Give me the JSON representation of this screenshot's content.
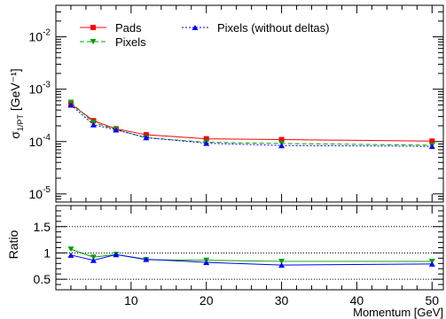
{
  "chart_data": [
    {
      "panel": "main",
      "type": "line",
      "ylabel_main": "σ",
      "ylabel_sub": "1/PT",
      "ylabel_unit": "[GeV⁻¹]",
      "y_scale": "log",
      "ylim": [
        7e-06,
        0.04
      ],
      "y_ticks": [
        {
          "value": 0.01,
          "base": "10",
          "exp": "-2"
        },
        {
          "value": 0.001,
          "base": "10",
          "exp": "-3"
        },
        {
          "value": 0.0001,
          "base": "10",
          "exp": "-4"
        },
        {
          "value": 1e-05,
          "base": "10",
          "exp": "-5"
        }
      ],
      "xlim": [
        0,
        51.5
      ],
      "legend_position": "top",
      "series": [
        {
          "name": "Pads",
          "color": "#ff0000",
          "marker": "square",
          "dash": "solid",
          "x": [
            2,
            5,
            8,
            12,
            20,
            30,
            50
          ],
          "y": [
            0.00052,
            0.00025,
            0.000175,
            0.000135,
            0.000113,
            0.000109,
            0.000102
          ]
        },
        {
          "name": "Pixels",
          "color": "#00a000",
          "marker": "triangle-down",
          "dash": "dashed",
          "x": [
            2,
            5,
            8,
            12,
            20,
            30,
            50
          ],
          "y": [
            0.00056,
            0.00023,
            0.00017,
            0.000118,
            9.7e-05,
            9.2e-05,
            8.5e-05
          ]
        },
        {
          "name": "Pixels (without deltas)",
          "color": "#0000ff",
          "marker": "triangle-up",
          "dash": "dotted",
          "x": [
            2,
            5,
            8,
            12,
            20,
            30,
            50
          ],
          "y": [
            0.0005,
            0.00021,
            0.000168,
            0.000119,
            9.3e-05,
            8.4e-05,
            8.1e-05
          ]
        }
      ]
    },
    {
      "panel": "ratio",
      "type": "line",
      "ylabel": "Ratio",
      "xlabel": "Momentum [GeV]",
      "ylim": [
        0.3,
        1.9
      ],
      "y_ticks": [
        {
          "value": 0.5,
          "label": "0.5"
        },
        {
          "value": 1,
          "label": "1"
        },
        {
          "value": 1.5,
          "label": "1.5"
        }
      ],
      "x_ticks": [
        {
          "value": 10,
          "label": "10"
        },
        {
          "value": 20,
          "label": "20"
        },
        {
          "value": 30,
          "label": "30"
        },
        {
          "value": 40,
          "label": "40"
        },
        {
          "value": 50,
          "label": "50"
        }
      ],
      "xlim": [
        0,
        51.5
      ],
      "reference_lines": [
        0.5,
        1,
        1.5
      ],
      "series": [
        {
          "color": "#00a000",
          "marker": "triangle-down",
          "x": [
            2,
            5,
            8,
            12,
            20,
            30,
            50
          ],
          "y": [
            1.07,
            0.92,
            0.97,
            0.87,
            0.86,
            0.84,
            0.84
          ]
        },
        {
          "color": "#0000ff",
          "marker": "triangle-up",
          "x": [
            2,
            5,
            8,
            12,
            20,
            30,
            50
          ],
          "y": [
            0.96,
            0.86,
            0.97,
            0.88,
            0.82,
            0.77,
            0.79
          ]
        }
      ]
    }
  ]
}
